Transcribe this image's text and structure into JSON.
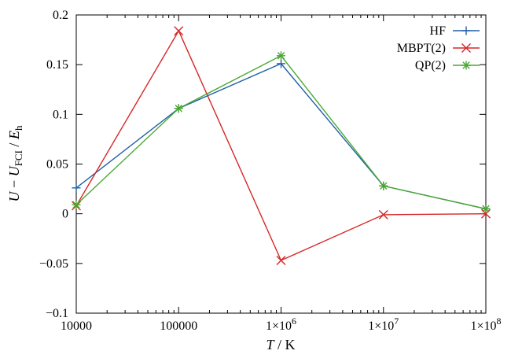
{
  "chart_data": {
    "type": "line",
    "title": "",
    "xlabel": "T / K",
    "ylabel": "U − U_FCI / E_h",
    "x_scale": "log",
    "xlim": [
      10000,
      100000000
    ],
    "ylim": [
      -0.1,
      0.2
    ],
    "grid": false,
    "legend_position": "top-right",
    "x": [
      10000,
      100000,
      1000000,
      10000000,
      100000000
    ],
    "x_tick_labels": [
      "10000",
      "100000",
      "1×10^6",
      "1×10^7",
      "1×10^8"
    ],
    "y_ticks": [
      -0.1,
      -0.05,
      0,
      0.05,
      0.1,
      0.15,
      0.2
    ],
    "y_tick_labels": [
      "−0.1",
      "−0.05",
      "0",
      "0.05",
      "0.1",
      "0.15",
      "0.2"
    ],
    "series": [
      {
        "name": "HF",
        "color": "#1f5fa6",
        "marker": "plus",
        "values": [
          0.026,
          0.106,
          0.151,
          0.028,
          0.005
        ]
      },
      {
        "name": "MBPT(2)",
        "color": "#d62728",
        "marker": "cross",
        "values": [
          0.008,
          0.184,
          -0.047,
          -0.001,
          0.0
        ]
      },
      {
        "name": "QP(2)",
        "color": "#4aa832",
        "marker": "star",
        "values": [
          0.009,
          0.106,
          0.159,
          0.028,
          0.005
        ]
      }
    ]
  }
}
